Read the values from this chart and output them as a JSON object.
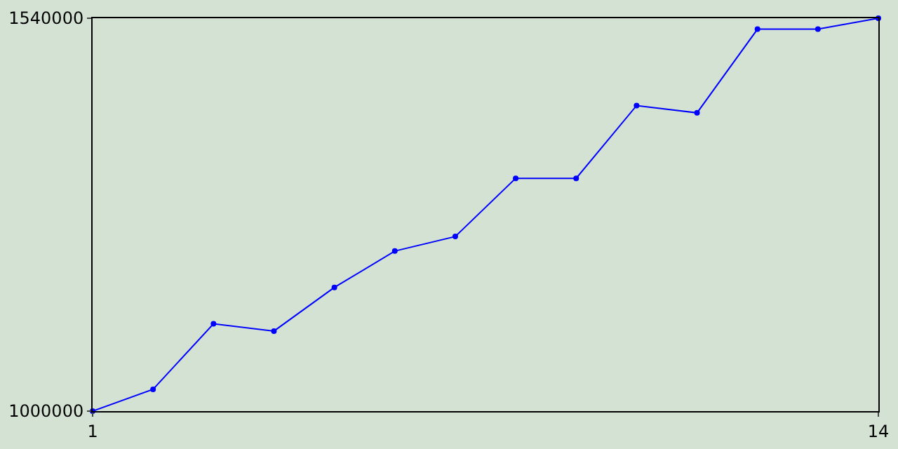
{
  "chart_data": {
    "type": "line",
    "x": [
      1,
      2,
      3,
      4,
      5,
      6,
      7,
      8,
      9,
      10,
      11,
      12,
      13,
      14
    ],
    "series": [
      {
        "color": "#0000ff",
        "values": [
          1000000,
          1030000,
          1120000,
          1110000,
          1170000,
          1220000,
          1240000,
          1320000,
          1320000,
          1420000,
          1410000,
          1525000,
          1525000,
          1540000
        ]
      }
    ],
    "xlim": [
      1,
      14
    ],
    "xticks": [
      1,
      14
    ],
    "ylim": [
      1000000,
      1540000
    ],
    "yticks": [
      1000000,
      1540000
    ],
    "legend": false,
    "marker": "circle",
    "line_style": "solid"
  }
}
